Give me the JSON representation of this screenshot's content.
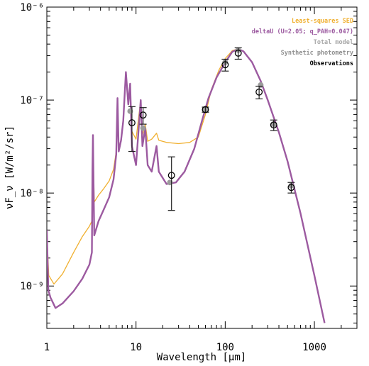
{
  "chart_data": {
    "type": "line",
    "xlabel": "Wavelength [μm]",
    "ylabel": "νF_ν [W/m²/sr]",
    "xscale": "log",
    "yscale": "log",
    "xlim": [
      1,
      3000
    ],
    "ylim": [
      3.5e-10,
      1e-06
    ],
    "x_ticks": [
      {
        "value": 1,
        "label": "1"
      },
      {
        "value": 10,
        "label": "10"
      },
      {
        "value": 100,
        "label": "100"
      },
      {
        "value": 1000,
        "label": "1000"
      }
    ],
    "y_ticks": [
      {
        "value": 1e-09,
        "label": "10⁻⁹"
      },
      {
        "value": 1e-08,
        "label": "10⁻⁸"
      },
      {
        "value": 1e-07,
        "label": "10⁻⁷"
      },
      {
        "value": 1e-06,
        "label": "10⁻⁶"
      }
    ],
    "legend_position": "top-right",
    "legend": [
      {
        "label": "Least-squares SED",
        "color": "#f0b030"
      },
      {
        "label": "deltaU (U=2.05; q_PAH=0.047)",
        "color": "#9c5aa0"
      },
      {
        "label": "Total model",
        "color": "#a8a8a8"
      },
      {
        "label": "Synthetic photometry",
        "color": "#909090"
      },
      {
        "label": "Observations",
        "color": "#000000"
      }
    ],
    "series": [
      {
        "name": "Least-squares SED",
        "color": "#f0b030",
        "points": [
          [
            1.0,
            3.6e-09
          ],
          [
            1.05,
            1.3e-09
          ],
          [
            1.2,
            1.05e-09
          ],
          [
            1.5,
            1.35e-09
          ],
          [
            2.0,
            2.3e-09
          ],
          [
            2.5,
            3.4e-09
          ],
          [
            3.0,
            4.4e-09
          ],
          [
            3.2,
            5e-09
          ],
          [
            3.25,
            2.2e-08
          ],
          [
            3.29,
            4.2e-08
          ],
          [
            3.33,
            2e-08
          ],
          [
            3.4,
            8e-09
          ],
          [
            3.8,
            9.5e-09
          ],
          [
            4.3,
            1.1e-08
          ],
          [
            5.0,
            1.35e-08
          ],
          [
            5.6,
            1.8e-08
          ],
          [
            6.0,
            2.8e-08
          ],
          [
            6.2,
            1e-07
          ],
          [
            6.4,
            3e-08
          ],
          [
            6.8,
            3.8e-08
          ],
          [
            7.2,
            6e-08
          ],
          [
            7.7,
            2e-07
          ],
          [
            8.2,
            9e-08
          ],
          [
            8.6,
            1.5e-07
          ],
          [
            9.0,
            4.6e-08
          ],
          [
            10.0,
            3.8e-08
          ],
          [
            11.3,
            1e-07
          ],
          [
            11.8,
            4.2e-08
          ],
          [
            12.7,
            5.5e-08
          ],
          [
            13.5,
            3.6e-08
          ],
          [
            15.0,
            3.8e-08
          ],
          [
            17.0,
            4.4e-08
          ],
          [
            18.0,
            3.7e-08
          ],
          [
            22.0,
            3.5e-08
          ],
          [
            30.0,
            3.4e-08
          ],
          [
            40.0,
            3.5e-08
          ],
          [
            50.0,
            4e-08
          ],
          [
            60.0,
            7e-08
          ],
          [
            70.0,
            1.3e-07
          ],
          [
            85.0,
            2.1e-07
          ],
          [
            100.0,
            2.8e-07
          ],
          [
            120.0,
            3.4e-07
          ],
          [
            140.0,
            3.55e-07
          ],
          [
            160.0,
            3.35e-07
          ],
          [
            200.0,
            2.55e-07
          ],
          [
            250.0,
            1.6e-07
          ],
          [
            300.0,
            1e-07
          ],
          [
            400.0,
            4.5e-08
          ],
          [
            500.0,
            2.2e-08
          ],
          [
            700.0,
            6e-09
          ],
          [
            1000.0,
            1.3e-09
          ],
          [
            1300.0,
            4e-10
          ]
        ]
      },
      {
        "name": "deltaU (U=2.05; q_PAH=0.047)",
        "color": "#9c5aa0",
        "points": [
          [
            1.0,
            4e-09
          ],
          [
            1.04,
            9e-10
          ],
          [
            1.1,
            7.5e-10
          ],
          [
            1.25,
            5.8e-10
          ],
          [
            1.5,
            6.5e-10
          ],
          [
            2.0,
            8.8e-10
          ],
          [
            2.5,
            1.2e-09
          ],
          [
            3.0,
            1.7e-09
          ],
          [
            3.2,
            2.3e-09
          ],
          [
            3.25,
            1.8e-08
          ],
          [
            3.29,
            4.2e-08
          ],
          [
            3.33,
            1.5e-08
          ],
          [
            3.4,
            3.5e-09
          ],
          [
            3.8,
            5e-09
          ],
          [
            4.3,
            6.5e-09
          ],
          [
            5.0,
            9e-09
          ],
          [
            5.6,
            1.4e-08
          ],
          [
            6.0,
            2.6e-08
          ],
          [
            6.2,
            1.05e-07
          ],
          [
            6.4,
            2.8e-08
          ],
          [
            6.8,
            3.7e-08
          ],
          [
            7.2,
            6e-08
          ],
          [
            7.7,
            2e-07
          ],
          [
            8.2,
            9e-08
          ],
          [
            8.6,
            1.5e-07
          ],
          [
            9.0,
            3.2e-08
          ],
          [
            10.0,
            2e-08
          ],
          [
            11.3,
            1e-07
          ],
          [
            11.8,
            3.2e-08
          ],
          [
            12.7,
            5e-08
          ],
          [
            13.5,
            2e-08
          ],
          [
            15.0,
            1.7e-08
          ],
          [
            17.0,
            3.2e-08
          ],
          [
            18.0,
            1.7e-08
          ],
          [
            22.0,
            1.25e-08
          ],
          [
            28.0,
            1.3e-08
          ],
          [
            35.0,
            1.7e-08
          ],
          [
            45.0,
            3e-08
          ],
          [
            55.0,
            6e-08
          ],
          [
            65.0,
            1.05e-07
          ],
          [
            80.0,
            1.75e-07
          ],
          [
            100.0,
            2.55e-07
          ],
          [
            120.0,
            3.3e-07
          ],
          [
            140.0,
            3.55e-07
          ],
          [
            160.0,
            3.35e-07
          ],
          [
            200.0,
            2.55e-07
          ],
          [
            250.0,
            1.6e-07
          ],
          [
            300.0,
            1e-07
          ],
          [
            400.0,
            4.5e-08
          ],
          [
            500.0,
            2.2e-08
          ],
          [
            700.0,
            6e-09
          ],
          [
            1000.0,
            1.3e-09
          ],
          [
            1300.0,
            4e-10
          ]
        ]
      }
    ],
    "synthetic_photometry": [
      {
        "x": 8.6,
        "y": 7.6e-08
      },
      {
        "x": 12.0,
        "y": 5e-08
      },
      {
        "x": 24.0,
        "y": 1.3e-08
      },
      {
        "x": 60.0,
        "y": 7.9e-08
      },
      {
        "x": 100.0,
        "y": 2.55e-07
      },
      {
        "x": 140.0,
        "y": 3.45e-07
      },
      {
        "x": 250.0,
        "y": 1.45e-07
      },
      {
        "x": 350.0,
        "y": 5.5e-08
      },
      {
        "x": 550.0,
        "y": 1.2e-08
      }
    ],
    "observations": [
      {
        "x": 9.0,
        "y": 5.7e-08,
        "ylow": 2.8e-08,
        "yhigh": 8.5e-08
      },
      {
        "x": 12.0,
        "y": 6.9e-08,
        "ylow": 5.5e-08,
        "yhigh": 8.3e-08
      },
      {
        "x": 25.0,
        "y": 1.55e-08,
        "ylow": 6.5e-09,
        "yhigh": 2.45e-08
      },
      {
        "x": 60.0,
        "y": 7.9e-08,
        "ylow": 7.4e-08,
        "yhigh": 8.4e-08
      },
      {
        "x": 100.0,
        "y": 2.4e-07,
        "ylow": 2.05e-07,
        "yhigh": 2.75e-07
      },
      {
        "x": 140.0,
        "y": 3.2e-07,
        "ylow": 2.75e-07,
        "yhigh": 3.65e-07
      },
      {
        "x": 240.0,
        "y": 1.22e-07,
        "ylow": 1.03e-07,
        "yhigh": 1.41e-07
      },
      {
        "x": 350.0,
        "y": 5.4e-08,
        "ylow": 4.7e-08,
        "yhigh": 6.1e-08
      },
      {
        "x": 550.0,
        "y": 1.15e-08,
        "ylow": 1e-08,
        "yhigh": 1.3e-08
      }
    ]
  }
}
